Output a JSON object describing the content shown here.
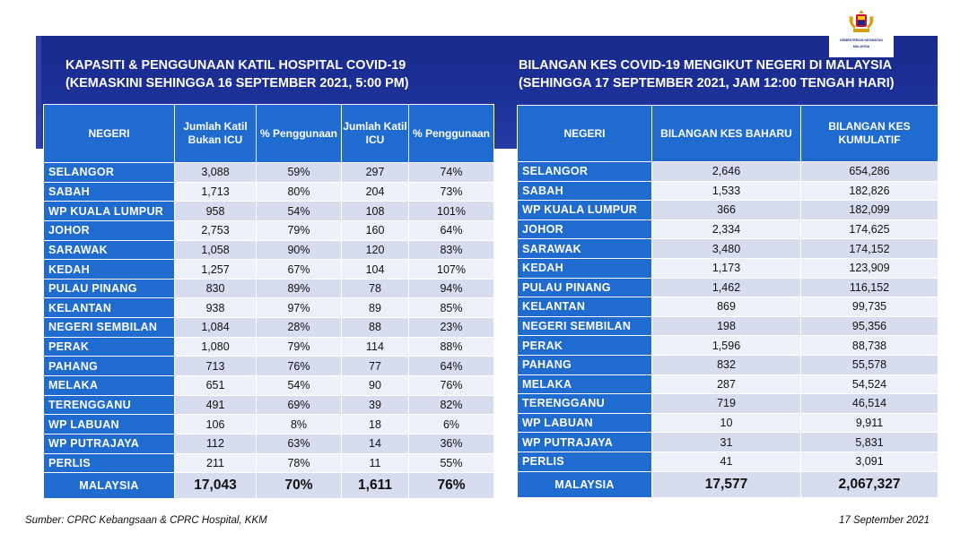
{
  "logo": {
    "caption_line1": "KEMENTERIAN KESIHATAN",
    "caption_line2": "MALAYSIA"
  },
  "left": {
    "title_line1": "KAPASITI & PENGGUNAAN KATIL HOSPITAL COVID-19",
    "title_line2": "(KEMASKINI SEHINGGA 16 SEPTEMBER 2021, 5:00 PM)",
    "headers": [
      "NEGERI",
      "Jumlah Katil Bukan ICU",
      "% Penggunaan",
      "Jumlah Katil ICU",
      "% Penggunaan"
    ],
    "rows": [
      [
        "SELANGOR",
        "3,088",
        "59%",
        "297",
        "74%"
      ],
      [
        "SABAH",
        "1,713",
        "80%",
        "204",
        "73%"
      ],
      [
        "WP KUALA LUMPUR",
        "958",
        "54%",
        "108",
        "101%"
      ],
      [
        "JOHOR",
        "2,753",
        "79%",
        "160",
        "64%"
      ],
      [
        "SARAWAK",
        "1,058",
        "90%",
        "120",
        "83%"
      ],
      [
        "KEDAH",
        "1,257",
        "67%",
        "104",
        "107%"
      ],
      [
        "PULAU PINANG",
        "830",
        "89%",
        "78",
        "94%"
      ],
      [
        "KELANTAN",
        "938",
        "97%",
        "89",
        "85%"
      ],
      [
        "NEGERI SEMBILAN",
        "1,084",
        "28%",
        "88",
        "23%"
      ],
      [
        "PERAK",
        "1,080",
        "79%",
        "114",
        "88%"
      ],
      [
        "PAHANG",
        "713",
        "76%",
        "77",
        "64%"
      ],
      [
        "MELAKA",
        "651",
        "54%",
        "90",
        "76%"
      ],
      [
        "TERENGGANU",
        "491",
        "69%",
        "39",
        "82%"
      ],
      [
        "WP LABUAN",
        "106",
        "8%",
        "18",
        "6%"
      ],
      [
        "WP PUTRAJAYA",
        "112",
        "63%",
        "14",
        "36%"
      ],
      [
        "PERLIS",
        "211",
        "78%",
        "11",
        "55%"
      ]
    ],
    "total": [
      "MALAYSIA",
      "17,043",
      "70%",
      "1,611",
      "76%"
    ]
  },
  "right": {
    "title_line1": "BILANGAN KES COVID-19 MENGIKUT NEGERI DI MALAYSIA",
    "title_line2": "(SEHINGGA 17 SEPTEMBER 2021, JAM 12:00 TENGAH HARI)",
    "headers": [
      "NEGERI",
      "BILANGAN KES BAHARU",
      "BILANGAN KES KUMULATIF"
    ],
    "rows": [
      [
        "SELANGOR",
        "2,646",
        "654,286"
      ],
      [
        "SABAH",
        "1,533",
        "182,826"
      ],
      [
        "WP KUALA LUMPUR",
        "366",
        "182,099"
      ],
      [
        "JOHOR",
        "2,334",
        "174,625"
      ],
      [
        "SARAWAK",
        "3,480",
        "174,152"
      ],
      [
        "KEDAH",
        "1,173",
        "123,909"
      ],
      [
        "PULAU PINANG",
        "1,462",
        "116,152"
      ],
      [
        "KELANTAN",
        "869",
        "99,735"
      ],
      [
        "NEGERI SEMBILAN",
        "198",
        "95,356"
      ],
      [
        "PERAK",
        "1,596",
        "88,738"
      ],
      [
        "PAHANG",
        "832",
        "55,578"
      ],
      [
        "MELAKA",
        "287",
        "54,524"
      ],
      [
        "TERENGGANU",
        "719",
        "46,514"
      ],
      [
        "WP LABUAN",
        "10",
        "9,911"
      ],
      [
        "WP PUTRAJAYA",
        "31",
        "5,831"
      ],
      [
        "PERLIS",
        "41",
        "3,091"
      ]
    ],
    "total": [
      "MALAYSIA",
      "17,577",
      "2,067,327"
    ]
  },
  "footer": {
    "source": "Sumber: CPRC Kebangsaan & CPRC Hospital, KKM",
    "date": "17 September 2021"
  },
  "colors": {
    "banner": "#1c2f96",
    "header_blue": "#1f6bd0",
    "row_light": "#edf0f8",
    "row_dark": "#d7dcef"
  }
}
